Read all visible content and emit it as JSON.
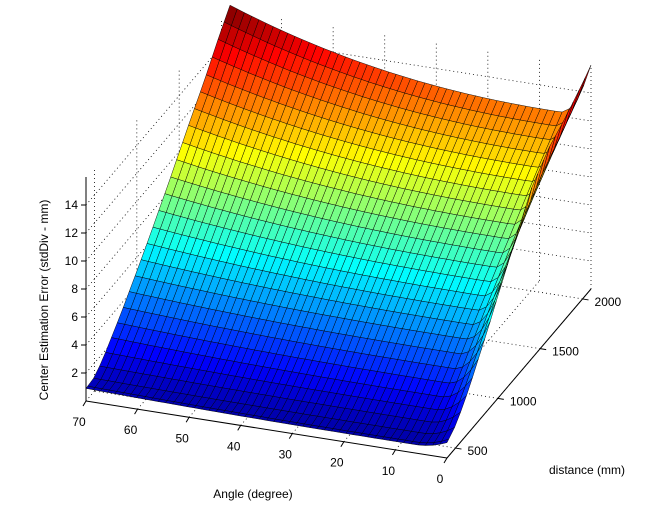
{
  "chart_data": {
    "type": "surface",
    "title": "",
    "xlabel": "Angle (degree)",
    "ylabel": "distance (mm)",
    "zlabel": "Center Estimation Error (stdDiv - mm)",
    "x_ticks": [
      "0",
      "10",
      "20",
      "30",
      "40",
      "50",
      "60",
      "70"
    ],
    "y_ticks": [
      "500",
      "1000",
      "1500",
      "2000"
    ],
    "z_ticks": [
      "2",
      "4",
      "6",
      "8",
      "10",
      "12",
      "14"
    ],
    "xlim": [
      0,
      70
    ],
    "ylim": [
      400,
      2100
    ],
    "zlim": [
      0,
      16
    ],
    "grid": true,
    "colormap": "jet",
    "surface": {
      "angle_values": [
        0,
        2,
        5,
        10,
        20,
        30,
        40,
        50,
        60,
        70
      ],
      "distance_values": [
        400,
        500,
        600,
        700,
        800,
        900,
        1000,
        1200,
        1400,
        1600,
        1800,
        2000,
        2100
      ],
      "error_at_max_angle_by_distance": [
        0.9,
        1.0,
        1.6,
        2.4,
        3.2,
        4.1,
        5.0,
        6.9,
        8.9,
        11.0,
        13.0,
        15.2,
        16.2
      ],
      "error_at_min_angle_by_distance": [
        1.1,
        1.6,
        2.5,
        3.6,
        4.8,
        6.0,
        7.3,
        9.8,
        12.2,
        13.6,
        14.4,
        15.4,
        16.0
      ],
      "error_at_mid_angle_by_distance": [
        0.6,
        0.8,
        1.3,
        1.9,
        2.6,
        3.4,
        4.2,
        5.7,
        7.2,
        8.7,
        10.2,
        11.6,
        12.3
      ]
    }
  }
}
